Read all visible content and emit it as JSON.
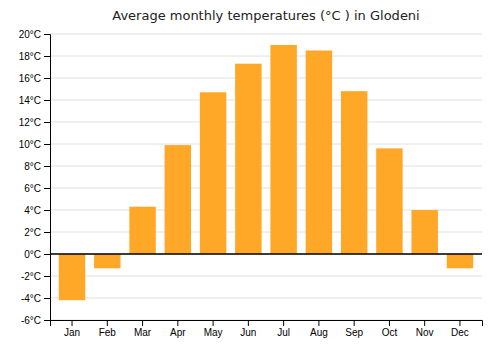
{
  "chart_data": {
    "type": "bar",
    "title": "Average monthly temperatures (°C ) in Glodeni",
    "categories": [
      "Jan",
      "Feb",
      "Mar",
      "Apr",
      "May",
      "Jun",
      "Jul",
      "Aug",
      "Sep",
      "Oct",
      "Nov",
      "Dec"
    ],
    "values": [
      -4.2,
      -1.3,
      4.3,
      9.9,
      14.7,
      17.3,
      19.0,
      18.5,
      14.8,
      9.6,
      4.0,
      -1.3
    ],
    "color": "#FFA726",
    "ylim": [
      -6,
      20
    ],
    "yticks": [
      {
        "value": -6,
        "label": "-6°C"
      },
      {
        "value": -4,
        "label": "-4°C"
      },
      {
        "value": -2,
        "label": "-2°C"
      },
      {
        "value": 0,
        "label": "0°C"
      },
      {
        "value": 2,
        "label": "2°C"
      },
      {
        "value": 4,
        "label": "4°C"
      },
      {
        "value": 6,
        "label": "6°C"
      },
      {
        "value": 8,
        "label": "8°C"
      },
      {
        "value": 10,
        "label": "10°C"
      },
      {
        "value": 12,
        "label": "12°C"
      },
      {
        "value": 14,
        "label": "14°C"
      },
      {
        "value": 16,
        "label": "16°C"
      },
      {
        "value": 18,
        "label": "18°C"
      },
      {
        "value": 20,
        "label": "20°C"
      }
    ],
    "grid": true
  }
}
